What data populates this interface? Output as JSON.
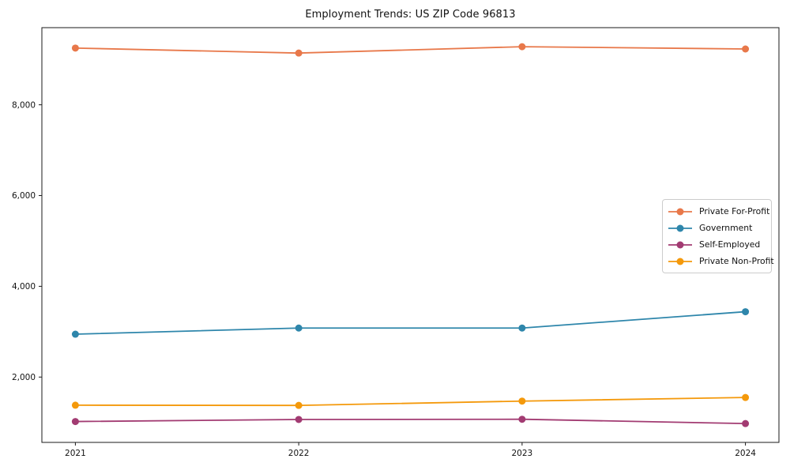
{
  "chart_data": {
    "type": "line",
    "title": "Employment Trends: US ZIP Code 96813",
    "x": [
      2021,
      2022,
      2023,
      2024
    ],
    "series": [
      {
        "name": "Private For-Profit",
        "color": "#E8784A",
        "values": [
          9250,
          9140,
          9280,
          9230
        ]
      },
      {
        "name": "Government",
        "color": "#2E86AB",
        "values": [
          2945,
          3080,
          3080,
          3440
        ]
      },
      {
        "name": "Self-Employed",
        "color": "#A23B72",
        "values": [
          1020,
          1065,
          1070,
          975
        ]
      },
      {
        "name": "Private Non-Profit",
        "color": "#F4990B",
        "values": [
          1380,
          1375,
          1470,
          1550
        ]
      }
    ],
    "xticks": [
      {
        "value": 2021,
        "label": "2021"
      },
      {
        "value": 2022,
        "label": "2022"
      },
      {
        "value": 2023,
        "label": "2023"
      },
      {
        "value": 2024,
        "label": "2024"
      }
    ],
    "yticks": [
      {
        "value": 2000,
        "label": "2,000"
      },
      {
        "value": 4000,
        "label": "4,000"
      },
      {
        "value": 6000,
        "label": "6,000"
      },
      {
        "value": 8000,
        "label": "8,000"
      }
    ],
    "xlim": [
      2020.85,
      2024.15
    ],
    "ylim": [
      560,
      9700
    ],
    "grid": false,
    "legend_position": "center-right",
    "marker": "circle",
    "axis_color": "#1a1a1a",
    "text_color": "#111111",
    "background": "#ffffff"
  }
}
